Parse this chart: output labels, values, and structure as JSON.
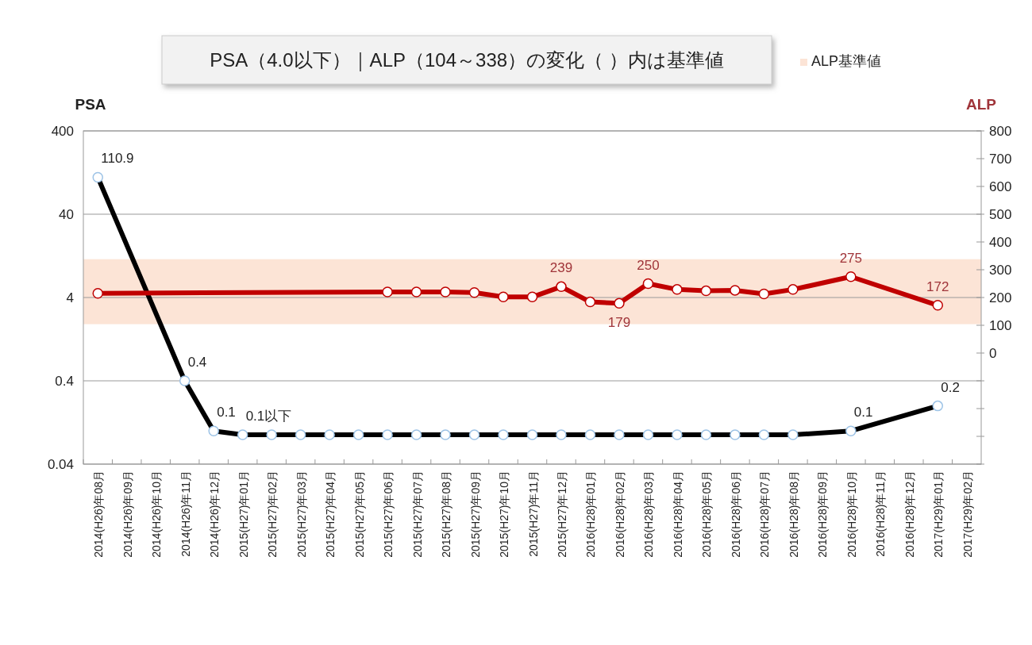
{
  "chart_data": {
    "type": "line",
    "title": "PSA（4.0以下）｜ALP（104～338）の変化（ ）内は基準値",
    "ylabel": "PSA",
    "y2label": "ALP",
    "categories": [
      "2014(H26)年08月",
      "2014(H26)年09月",
      "2014(H26)年10月",
      "2014(H26)年11月",
      "2014(H26)年12月",
      "2015(H27)年01月",
      "2015(H27)年02月",
      "2015(H27)年03月",
      "2015(H27)年04月",
      "2015(H27)年05月",
      "2015(H27)年06月",
      "2015(H27)年07月",
      "2015(H27)年08月",
      "2015(H27)年09月",
      "2015(H27)年10月",
      "2015(H27)年11月",
      "2015(H27)年12月",
      "2016(H28)年01月",
      "2016(H28)年02月",
      "2016(H28)年03月",
      "2016(H28)年04月",
      "2016(H28)年05月",
      "2016(H28)年06月",
      "2016(H28)年07月",
      "2016(H28)年08月",
      "2016(H28)年09月",
      "2016(H28)年10月",
      "2016(H28)年11月",
      "2016(H28)年12月",
      "2017(H29)年01月",
      "2017(H29)年02月"
    ],
    "series": [
      {
        "color": "#000000",
        "values": [
          110.9,
          null,
          null,
          0.4,
          0.1,
          0.09,
          0.09,
          0.09,
          0.09,
          0.09,
          0.09,
          0.09,
          0.09,
          0.09,
          0.09,
          0.09,
          0.09,
          0.09,
          0.09,
          0.09,
          0.09,
          0.09,
          0.09,
          0.09,
          0.09,
          null,
          0.1,
          null,
          null,
          0.2,
          null
        ],
        "value_labels": [
          "110.9",
          null,
          null,
          "0.4",
          "0.1",
          "0.1以下",
          null,
          null,
          null,
          null,
          null,
          null,
          null,
          null,
          null,
          null,
          null,
          null,
          null,
          null,
          null,
          null,
          null,
          null,
          null,
          null,
          "0.1",
          null,
          null,
          "0.2",
          null
        ]
      },
      {
        "color": "#c00000",
        "axis": "y2",
        "values": [
          215,
          null,
          null,
          null,
          null,
          null,
          null,
          null,
          null,
          null,
          220,
          220,
          220,
          218,
          202,
          202,
          239,
          184,
          179,
          250,
          229,
          224,
          226,
          213,
          229,
          null,
          275,
          null,
          null,
          172,
          null
        ],
        "value_labels": [
          null,
          null,
          null,
          null,
          null,
          null,
          null,
          null,
          null,
          null,
          null,
          null,
          null,
          null,
          null,
          null,
          "239",
          null,
          "179",
          "250",
          null,
          null,
          null,
          null,
          null,
          null,
          "275",
          null,
          null,
          "172",
          null
        ]
      }
    ],
    "log": "y",
    "ylim": [
      0.04,
      400
    ],
    "yticks": [
      0.04,
      0.4,
      4,
      40,
      400
    ],
    "y2lim": [
      -400,
      800
    ],
    "y2ticks": [
      {
        "value": -400,
        "label": null
      },
      {
        "value": -300,
        "label": null
      },
      {
        "value": -200,
        "label": null
      },
      {
        "value": -100,
        "label": null
      },
      0,
      100,
      200,
      300,
      400,
      500,
      600,
      700,
      800
    ],
    "bands": [
      {
        "axis": "y2",
        "from": 104,
        "to": 338,
        "label": "ALP基準値",
        "color": "#fce4d6"
      }
    ],
    "grid": "y",
    "legend": "top right",
    "marker": "circle",
    "line_style": "solid"
  }
}
